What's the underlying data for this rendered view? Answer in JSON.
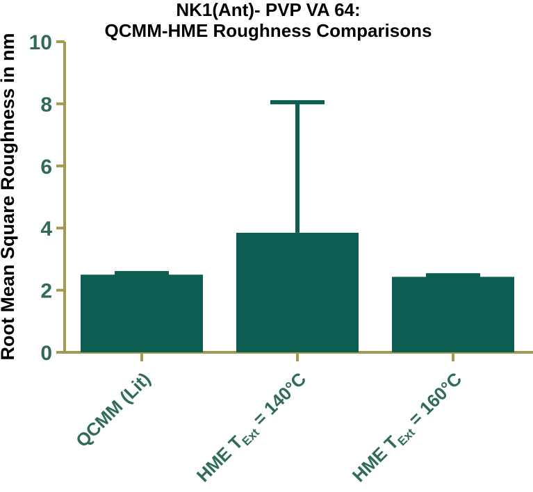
{
  "chart_data": {
    "type": "bar",
    "title": [
      "NK1(Ant)- PVP VA 64:",
      "QCMM-HME Roughness Comparisons"
    ],
    "ylabel": "Root Mean Square Roughness in nm",
    "xlabel": "",
    "ylim": [
      0,
      10
    ],
    "yticks": [
      0,
      2,
      4,
      6,
      8,
      10
    ],
    "ytick_labels": [
      "0",
      "2",
      "4",
      "6",
      "8",
      "10"
    ],
    "categories": [
      {
        "pre": "QCMM (Lit)",
        "sub": "",
        "post": ""
      },
      {
        "pre": "HME T",
        "sub": "Ext",
        "post": " = 140°C"
      },
      {
        "pre": "HME T",
        "sub": "Ext",
        "post": " = 160°C"
      }
    ],
    "values": [
      2.5,
      3.85,
      2.43
    ],
    "error_upper": [
      2.55,
      8.05,
      2.48
    ],
    "grid": false,
    "legend": "none",
    "colors": {
      "bar": "#0d5e52",
      "axis": "#a39a50",
      "tick_label": "#2f6b58",
      "title": "#000000"
    }
  }
}
